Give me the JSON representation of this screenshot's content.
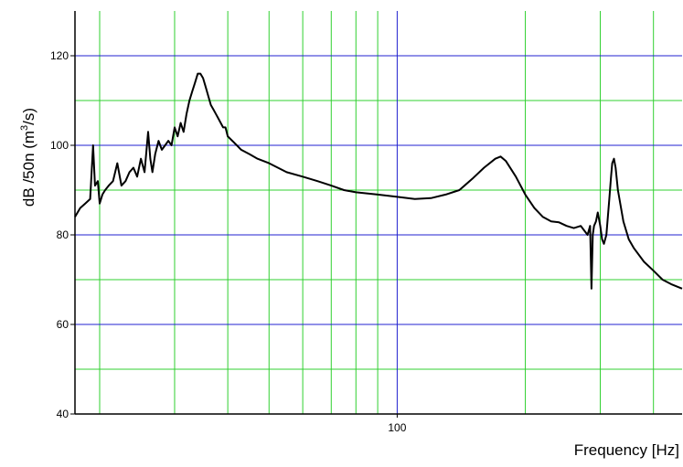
{
  "chart_data": {
    "type": "line",
    "title": "",
    "xlabel": "Frequency [Hz]",
    "ylabel": "dB /50n (m³/s)",
    "ylabel_parts": {
      "before": "dB /50n (m",
      "sup": "3",
      "after": "/s)"
    },
    "x_scale": "log",
    "xlim": [
      17.5,
      467
    ],
    "ylim": [
      40,
      130
    ],
    "y_ticks": [
      40,
      60,
      80,
      100,
      120
    ],
    "y_tick_labels": [
      "40",
      "60",
      "80",
      "100",
      "120"
    ],
    "x_tick_labels": [
      {
        "value": 100,
        "label": "100"
      }
    ],
    "x_major_gridlines": [
      100
    ],
    "x_minor_gridlines": [
      20,
      30,
      40,
      50,
      60,
      70,
      80,
      90,
      200,
      300,
      400
    ],
    "y_major_gridlines": [
      60,
      80,
      100,
      120
    ],
    "y_minor_gridlines": [
      50,
      70,
      90,
      110
    ],
    "grid": true,
    "colors": {
      "major_grid": "#2020d0",
      "minor_grid": "#30d030",
      "line": "#000000",
      "axes": "#000000"
    },
    "series": [
      {
        "x": [
          17.5,
          18.0,
          18.5,
          19.0,
          19.3,
          19.5,
          19.8,
          20.0,
          20.3,
          20.6,
          21.0,
          21.5,
          22.0,
          22.5,
          23.0,
          23.5,
          24.0,
          24.5,
          25.0,
          25.5,
          26.0,
          26.3,
          26.6,
          27.0,
          27.5,
          28.0,
          28.5,
          29.0,
          29.5,
          30.0,
          30.5,
          31.0,
          31.5,
          32.0,
          32.5,
          33.0,
          33.5,
          34.0,
          34.5,
          35.0,
          35.5,
          36.0,
          36.5,
          37.0,
          37.5,
          38.0,
          38.5,
          39.0,
          39.5,
          40.0,
          41.0,
          42.0,
          43.0,
          45.0,
          47.0,
          50.0,
          55.0,
          60.0,
          65.0,
          70.0,
          75.0,
          80.0,
          90.0,
          100.0,
          110.0,
          120.0,
          130.0,
          140.0,
          150.0,
          160.0,
          170.0,
          175.0,
          180.0,
          190.0,
          200.0,
          210.0,
          220.0,
          230.0,
          240.0,
          250.0,
          260.0,
          270.0,
          275.0,
          280.0,
          284.0,
          286.0,
          288.0,
          290.0,
          293.0,
          296.0,
          300.0,
          303.0,
          306.0,
          310.0,
          315.0,
          318.0,
          320.0,
          323.0,
          326.0,
          330.0,
          340.0,
          350.0,
          360.0,
          380.0,
          400.0,
          420.0,
          440.0,
          467.0
        ],
        "values": [
          84,
          86,
          87,
          88,
          100,
          91,
          92,
          87,
          89,
          90,
          91,
          92,
          96,
          91,
          92,
          94,
          95,
          93,
          97,
          94,
          103,
          97,
          94,
          98,
          101,
          99,
          100,
          101,
          100,
          104,
          102,
          105,
          103,
          107,
          110,
          112,
          114,
          116,
          116,
          115,
          113,
          111,
          109,
          108,
          107,
          106,
          105,
          104,
          104,
          102,
          101,
          100,
          99,
          98,
          97,
          96,
          94,
          93,
          92,
          91,
          90,
          89.5,
          89,
          88.5,
          88,
          88.2,
          89,
          90,
          92.5,
          95,
          97,
          97.5,
          96.5,
          93,
          89,
          86,
          84,
          83,
          82.8,
          82,
          81.5,
          82,
          81,
          80,
          82,
          68,
          80,
          82,
          83,
          85,
          82,
          79,
          78,
          80,
          88,
          93,
          96,
          97,
          95,
          90,
          83,
          79,
          77,
          74,
          72,
          70,
          69,
          68
        ]
      }
    ]
  }
}
